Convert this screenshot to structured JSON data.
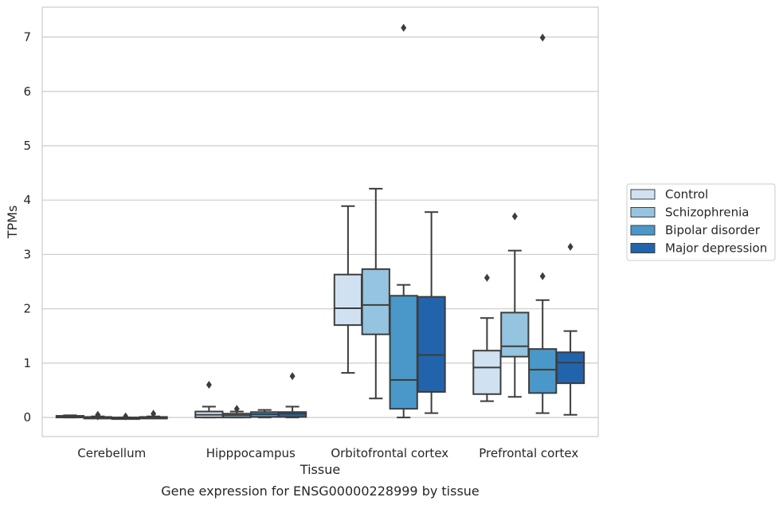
{
  "chart_data": {
    "type": "box",
    "xlabel": "Tissue",
    "ylabel": "TPMs",
    "caption": "Gene expression for ENSG00000228999 by tissue",
    "ylim": [
      -0.35,
      7.55
    ],
    "yticks": [
      0,
      1,
      2,
      3,
      4,
      5,
      6,
      7
    ],
    "grid": "horizontal",
    "legend_placement": "right",
    "categories": [
      "Cerebellum",
      "Hipppocampus",
      "Orbitofrontal cortex",
      "Prefrontal cortex"
    ],
    "series": [
      {
        "name": "Control",
        "color": "#d0e1f2",
        "boxes": [
          {
            "whislo": 0.0,
            "q1": 0.0,
            "med": 0.01,
            "q3": 0.03,
            "whishi": 0.04,
            "fliers": []
          },
          {
            "whislo": 0.0,
            "q1": 0.0,
            "med": 0.05,
            "q3": 0.11,
            "whishi": 0.2,
            "fliers": [
              0.6
            ]
          },
          {
            "whislo": 0.82,
            "q1": 1.7,
            "med": 2.01,
            "q3": 2.63,
            "whishi": 3.89,
            "fliers": []
          },
          {
            "whislo": 0.3,
            "q1": 0.43,
            "med": 0.92,
            "q3": 1.23,
            "whishi": 1.83,
            "fliers": [
              2.57
            ]
          }
        ]
      },
      {
        "name": "Schizophrenia",
        "color": "#94c4df",
        "boxes": [
          {
            "whislo": 0.0,
            "q1": 0.0,
            "med": 0.0,
            "q3": 0.01,
            "whishi": 0.02,
            "fliers": [
              0.05,
              0.02
            ]
          },
          {
            "whislo": 0.0,
            "q1": 0.0,
            "med": 0.04,
            "q3": 0.07,
            "whishi": 0.11,
            "fliers": [
              0.16
            ]
          },
          {
            "whislo": 0.35,
            "q1": 1.53,
            "med": 2.07,
            "q3": 2.73,
            "whishi": 4.21,
            "fliers": []
          },
          {
            "whislo": 0.38,
            "q1": 1.12,
            "med": 1.31,
            "q3": 1.93,
            "whishi": 3.07,
            "fliers": [
              3.7
            ]
          }
        ]
      },
      {
        "name": "Bipolar disorder",
        "color": "#4a98c9",
        "boxes": [
          {
            "whislo": 0.0,
            "q1": 0.0,
            "med": 0.0,
            "q3": 0.0,
            "whishi": 0.0,
            "fliers": [
              0.02
            ]
          },
          {
            "whislo": 0.0,
            "q1": 0.01,
            "med": 0.06,
            "q3": 0.1,
            "whishi": 0.14,
            "fliers": []
          },
          {
            "whislo": 0.0,
            "q1": 0.16,
            "med": 0.69,
            "q3": 2.24,
            "whishi": 2.44,
            "fliers": [
              7.17
            ]
          },
          {
            "whislo": 0.08,
            "q1": 0.45,
            "med": 0.88,
            "q3": 1.26,
            "whishi": 2.16,
            "fliers": [
              2.6,
              6.99
            ]
          }
        ]
      },
      {
        "name": "Major depression",
        "color": "#2164ab",
        "boxes": [
          {
            "whislo": 0.0,
            "q1": 0.0,
            "med": 0.0,
            "q3": 0.01,
            "whishi": 0.02,
            "fliers": [
              0.07
            ]
          },
          {
            "whislo": 0.0,
            "q1": 0.01,
            "med": 0.07,
            "q3": 0.1,
            "whishi": 0.2,
            "fliers": [
              0.76
            ]
          },
          {
            "whislo": 0.08,
            "q1": 0.47,
            "med": 1.15,
            "q3": 2.22,
            "whishi": 3.78,
            "fliers": []
          },
          {
            "whislo": 0.05,
            "q1": 0.63,
            "med": 1.01,
            "q3": 1.2,
            "whishi": 1.59,
            "fliers": [
              3.14
            ]
          }
        ]
      }
    ]
  }
}
